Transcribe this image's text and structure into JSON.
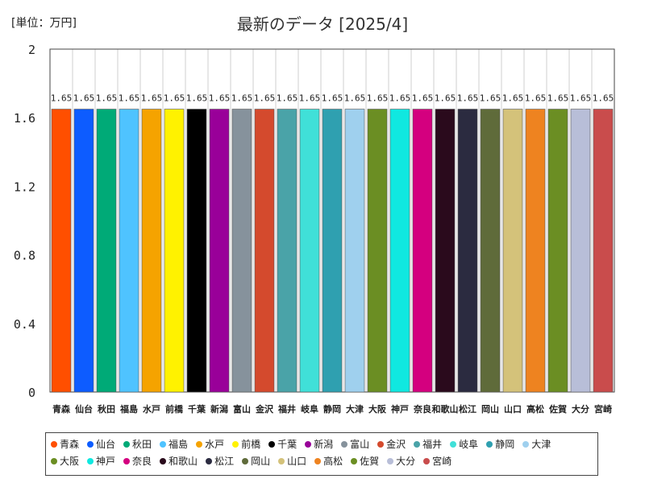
{
  "header": {
    "unit_label": "[単位：万円]",
    "title": "最新のデータ [2025/4]"
  },
  "chart_data": {
    "type": "bar",
    "title": "最新のデータ [2025/4]",
    "ylabel": "[単位：万円]",
    "ylim": [
      0,
      2
    ],
    "yticks": [
      "0",
      "0.4",
      "0.8",
      "1.2",
      "1.6",
      "2"
    ],
    "ytick_values": [
      0,
      0.4,
      0.8,
      1.2,
      1.6,
      2
    ],
    "grid": "vertical",
    "legend_position": "bottom",
    "categories": [
      "青森",
      "仙台",
      "秋田",
      "福島",
      "水戸",
      "前橋",
      "千葉",
      "新潟",
      "富山",
      "金沢",
      "福井",
      "岐阜",
      "静岡",
      "大津",
      "大阪",
      "神戸",
      "奈良",
      "和歌山",
      "松江",
      "岡山",
      "山口",
      "高松",
      "佐賀",
      "大分",
      "宮崎"
    ],
    "values": [
      1.65,
      1.65,
      1.65,
      1.65,
      1.65,
      1.65,
      1.65,
      1.65,
      1.65,
      1.65,
      1.65,
      1.65,
      1.65,
      1.65,
      1.65,
      1.65,
      1.65,
      1.65,
      1.65,
      1.65,
      1.65,
      1.65,
      1.65,
      1.65,
      1.65
    ],
    "data_labels": [
      "1.65",
      "1.65",
      "1.65",
      "1.65",
      "1.65",
      "1.65",
      "1.65",
      "1.65",
      "1.65",
      "1.65",
      "1.65",
      "1.65",
      "1.65",
      "1.65",
      "1.65",
      "1.65",
      "1.65",
      "1.65",
      "1.65",
      "1.65",
      "1.65",
      "1.65",
      "1.65",
      "1.65",
      "1.65"
    ],
    "colors": [
      "#ff4f00",
      "#0d5cff",
      "#00aa77",
      "#4fc3ff",
      "#f5a300",
      "#fff200",
      "#000000",
      "#990099",
      "#86929c",
      "#d44a2d",
      "#4aa3a8",
      "#40e0d8",
      "#2fa0b0",
      "#9fd0ee",
      "#6b8e23",
      "#10e8e0",
      "#d4007f",
      "#2a0a1c",
      "#2b2b40",
      "#5f6b3a",
      "#d4c27a",
      "#ee8320",
      "#6b8e23",
      "#b8bed8",
      "#c94c4c"
    ]
  }
}
